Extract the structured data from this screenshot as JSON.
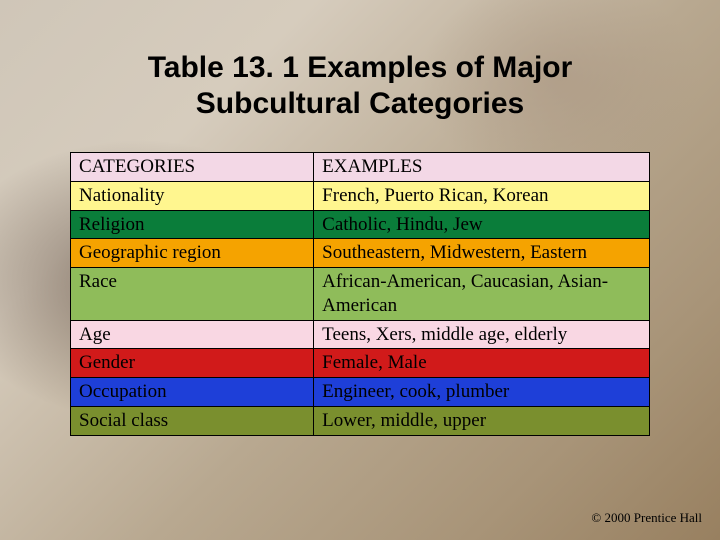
{
  "title_line1": "Table 13. 1  Examples of Major",
  "title_line2": "Subcultural Categories",
  "table": {
    "header": {
      "cat": "CATEGORIES",
      "ex": "EXAMPLES"
    },
    "rows": [
      {
        "cat": "Nationality",
        "ex": "French, Puerto Rican, Korean",
        "bg": "#fff68f"
      },
      {
        "cat": "Religion",
        "ex": "Catholic, Hindu, Jew",
        "bg": "#0a7d3a"
      },
      {
        "cat": "Geographic region",
        "ex": "Southeastern, Midwestern, Eastern",
        "bg": "#f5a300"
      },
      {
        "cat": "Race",
        "ex": "African-American, Caucasian, Asian-American",
        "bg": "#8fbc5a"
      },
      {
        "cat": "Age",
        "ex": "Teens, Xers, middle age, elderly",
        "bg": "#f9d7e3"
      },
      {
        "cat": "Gender",
        "ex": "Female, Male",
        "bg": "#d11a1a"
      },
      {
        "cat": "Occupation",
        "ex": "Engineer, cook, plumber",
        "bg": "#1e3fd8"
      },
      {
        "cat": "Social class",
        "ex": "Lower, middle, upper",
        "bg": "#7a8f2e"
      }
    ],
    "header_bg": "#f3d8e6",
    "col_cat_width_pct": 42,
    "col_ex_width_pct": 58,
    "cell_fontsize_pt": 14,
    "title_fontsize_pt": 22
  },
  "footer": "© 2000 Prentice Hall"
}
